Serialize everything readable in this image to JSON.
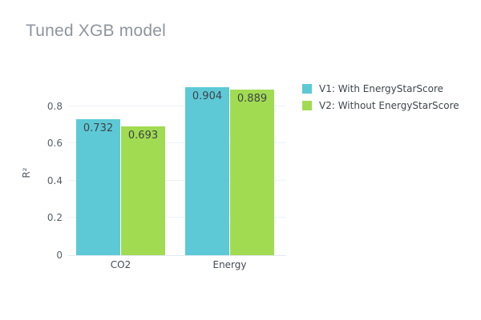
{
  "chart_data": {
    "type": "bar",
    "title": "Tuned XGB model",
    "ylabel": "R²",
    "xlabel": "",
    "categories": [
      "CO2",
      "Energy"
    ],
    "series": [
      {
        "name": "V1: With EnergyStarScore",
        "color": "#5DC9D6",
        "values": [
          0.732,
          0.904
        ]
      },
      {
        "name": "V2: Without EnergyStarScore",
        "color": "#A1DB52",
        "values": [
          0.693,
          0.889
        ]
      }
    ],
    "value_labels": [
      [
        "0.732",
        "0.904"
      ],
      [
        "0.693",
        "0.889"
      ]
    ],
    "yticks": [
      0,
      0.2,
      0.4,
      0.6,
      0.8
    ],
    "ytick_labels": [
      "0",
      "0.2",
      "0.4",
      "0.6",
      "0.8"
    ],
    "ylim": [
      0,
      0.95
    ],
    "grid": true,
    "legend_position": "right-top",
    "background_color": "#ffffff"
  }
}
